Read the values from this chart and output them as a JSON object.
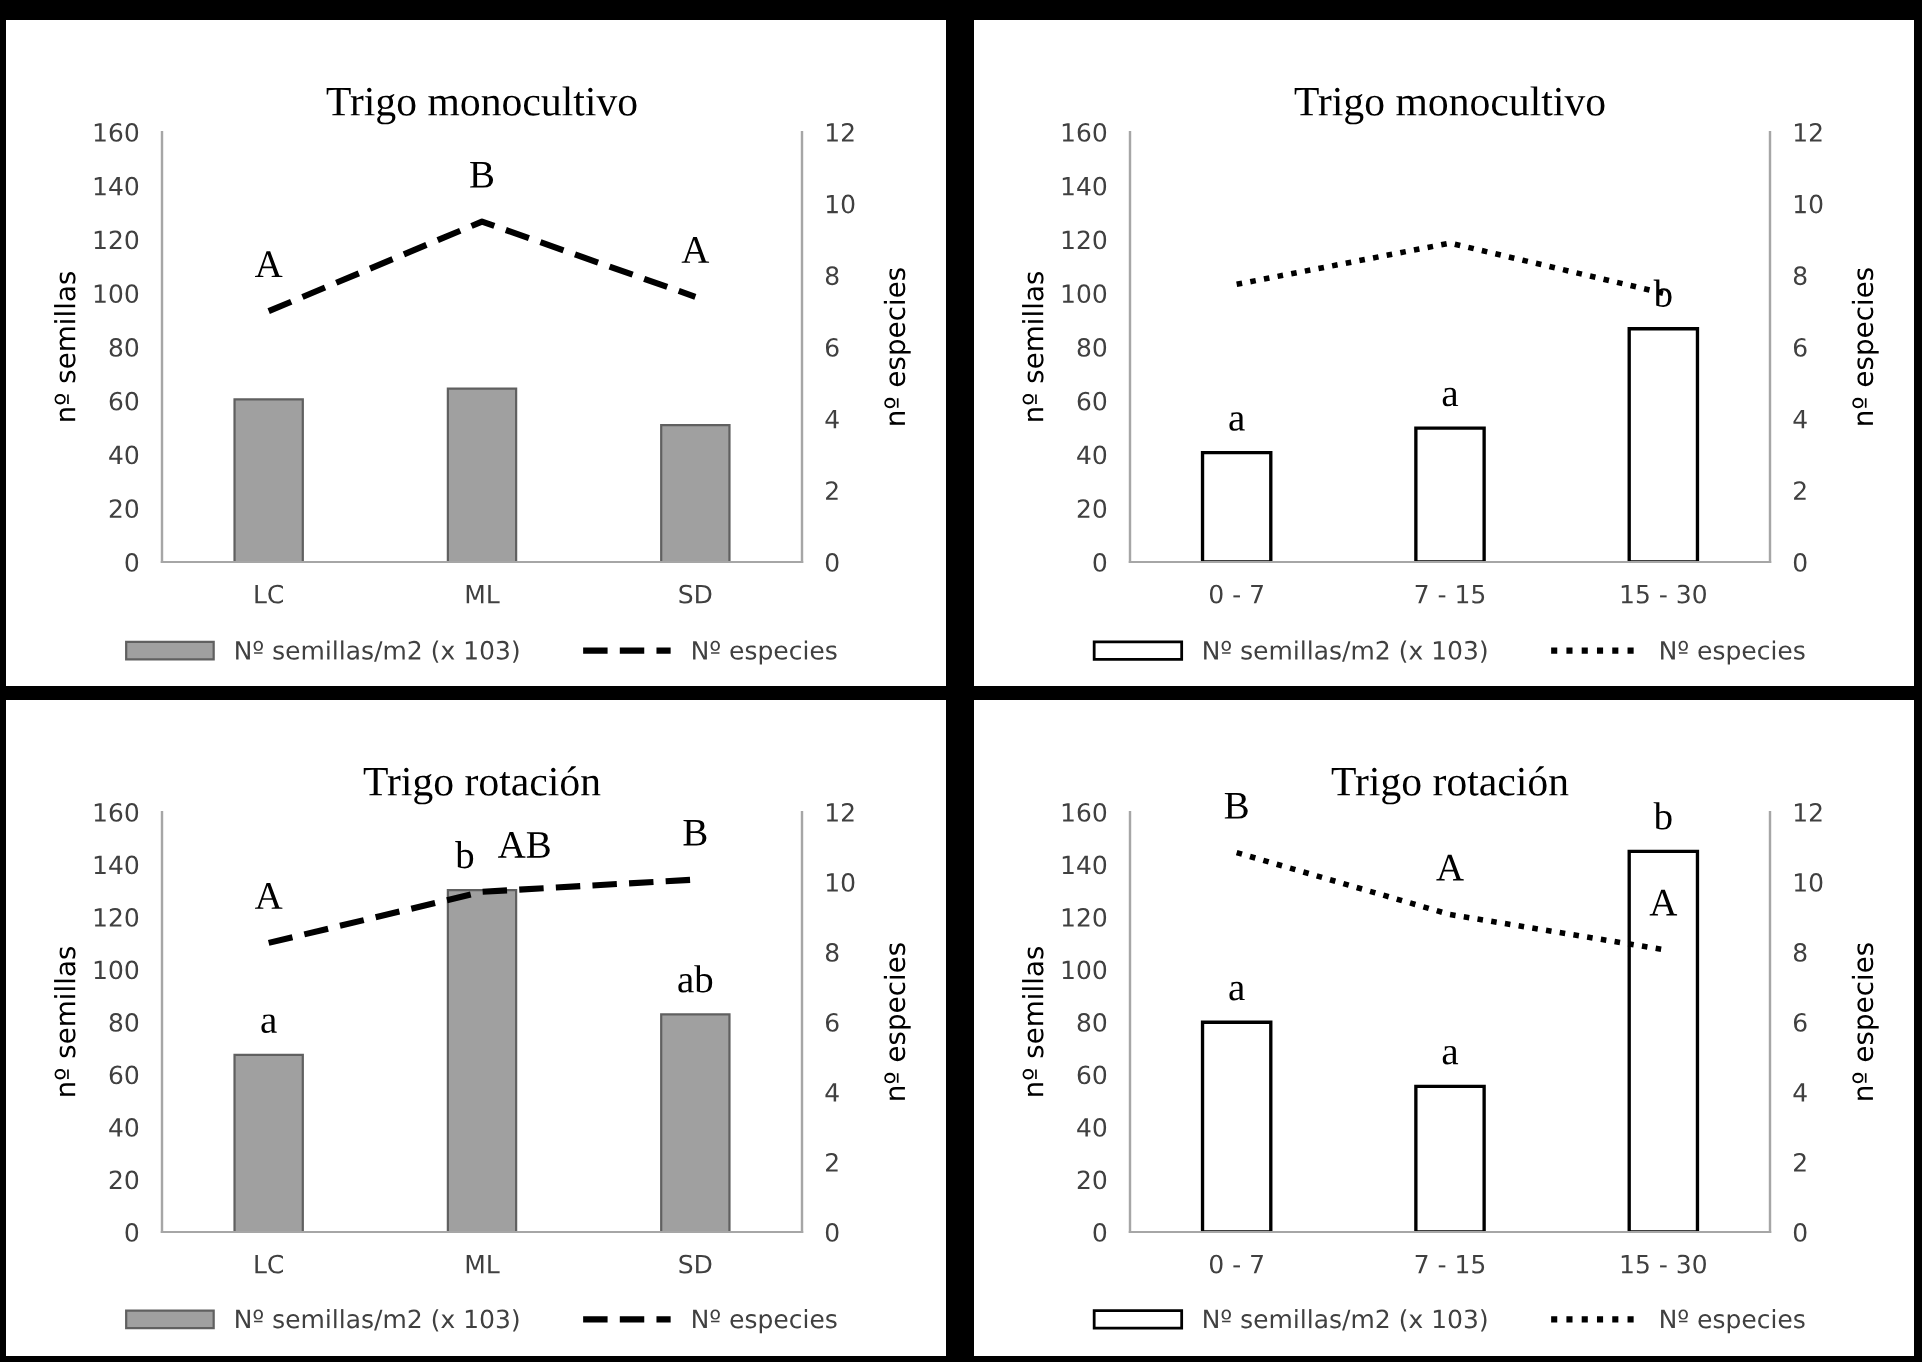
{
  "chart_data": [
    {
      "type": "bar",
      "title": "Trigo monocultivo",
      "ylabel": "nº semillas",
      "y2label": "nº especies",
      "categories": [
        "LC",
        "ML",
        "SD"
      ],
      "series": [
        {
          "name": "Nº semillas/m2 (x 103)",
          "color": "#a0a0a0",
          "values": [
            60.5,
            64.5,
            50.9
          ]
        },
        {
          "name": "Nº especies",
          "type": "line",
          "axis": "y2",
          "color": "#000000",
          "line_style": "dashed",
          "values": [
            7.0,
            9.5,
            7.4
          ]
        }
      ],
      "ylim": [
        0,
        160
      ],
      "yticks": [
        0,
        20,
        40,
        60,
        80,
        100,
        120,
        140,
        160
      ],
      "y2lim": [
        0,
        12
      ],
      "y2ticks": [
        0,
        2,
        4,
        6,
        8,
        10,
        12
      ],
      "annotations": [
        "A",
        "B",
        "A"
      ],
      "legend": "bottom",
      "grid": false
    },
    {
      "type": "bar",
      "title": "Trigo monocultivo",
      "ylabel": "nº semillas",
      "y2label": "nº especies",
      "categories": [
        "0 - 7",
        "7 - 15",
        "15 - 30"
      ],
      "series": [
        {
          "name": "Nº semillas/m2 (x 103)",
          "color": "#ffffff",
          "values": [
            40.7,
            49.8,
            86.8
          ]
        },
        {
          "name": "Nº especies",
          "type": "line",
          "axis": "y2",
          "color": "#000000",
          "line_style": "dotted",
          "values": [
            7.75,
            8.9,
            7.5
          ]
        }
      ],
      "ylim": [
        0,
        160
      ],
      "yticks": [
        0,
        20,
        40,
        60,
        80,
        100,
        120,
        140,
        160
      ],
      "y2lim": [
        0,
        12
      ],
      "y2ticks": [
        0,
        2,
        4,
        6,
        8,
        10,
        12
      ],
      "annotations": [
        {
          "text": "a",
          "x": "0 - 7",
          "y": 40.7
        },
        {
          "text": "a",
          "x": "7 - 15",
          "y": 49.8
        },
        {
          "text": "b",
          "x": "15 - 30",
          "y": 86.8
        }
      ],
      "legend": "bottom",
      "grid": false
    },
    {
      "type": "bar",
      "title": "Trigo rotación",
      "ylabel": "nº semillas",
      "y2label": "nº especies",
      "categories": [
        "LC",
        "ML",
        "SD"
      ],
      "series": [
        {
          "name": "Nº semillas/m2 (x 103)",
          "color": "#a0a0a0",
          "values": [
            67.5,
            130.2,
            82.9
          ]
        },
        {
          "name": "Nº especies",
          "type": "line",
          "axis": "y2",
          "color": "#000000",
          "line_style": "dashed",
          "values": [
            8.26,
            9.72,
            10.07
          ]
        }
      ],
      "ylim": [
        0,
        160
      ],
      "yticks": [
        0,
        20,
        40,
        60,
        80,
        100,
        120,
        140,
        160
      ],
      "y2lim": [
        0,
        12
      ],
      "y2ticks": [
        0,
        2,
        4,
        6,
        8,
        10,
        12
      ],
      "annotations": [
        {
          "text": "a",
          "x": "LC",
          "y": 67.5
        },
        {
          "text": "b",
          "x": "ML",
          "y": 130.2
        },
        {
          "text": "ab",
          "x": "SD",
          "y": 82.9
        },
        "A",
        "AB",
        "B"
      ],
      "legend": "bottom",
      "grid": false
    },
    {
      "type": "bar",
      "title": "Trigo rotación",
      "ylabel": "nº semillas",
      "y2label": "nº especies",
      "categories": [
        "0 - 7",
        "7 - 15",
        "15 - 30"
      ],
      "series": [
        {
          "name": "Nº semillas/m2 (x 103)",
          "color": "#ffffff",
          "values": [
            79.9,
            55.5,
            145
          ]
        },
        {
          "name": "Nº especies",
          "type": "line",
          "axis": "y2",
          "color": "#000000",
          "line_style": "dotted",
          "values": [
            10.84,
            9.07,
            8.07
          ]
        }
      ],
      "ylim": [
        0,
        160
      ],
      "yticks": [
        0,
        20,
        40,
        60,
        80,
        100,
        120,
        140,
        160
      ],
      "y2lim": [
        0,
        12
      ],
      "y2ticks": [
        0,
        2,
        4,
        6,
        8,
        10,
        12
      ],
      "annotations": [
        {
          "text": "a",
          "x": "0 - 7",
          "y": 79.9
        },
        {
          "text": "a",
          "x": "7 - 15",
          "y": 55.5
        },
        {
          "text": "b",
          "x": "15 - 30",
          "y": 145
        },
        "B",
        "A",
        "A"
      ],
      "legend": "bottom",
      "grid": false
    }
  ]
}
